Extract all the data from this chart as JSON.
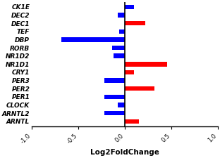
{
  "genes": [
    "CK1E",
    "DEC2",
    "DEC1",
    "TEF",
    "DBP",
    "RORB",
    "NR1D2",
    "NR1D1",
    "CRY1",
    "PER3",
    "PER2",
    "PER1",
    "CLOCK",
    "ARNTL2",
    "ARNTL"
  ],
  "values": [
    0.1,
    -0.08,
    0.22,
    -0.06,
    -0.68,
    -0.14,
    -0.12,
    0.45,
    0.1,
    -0.22,
    0.32,
    -0.22,
    -0.08,
    -0.22,
    0.15
  ],
  "colors": [
    "#0000ff",
    "#0000ff",
    "#ff0000",
    "#0000ff",
    "#0000ff",
    "#0000ff",
    "#0000ff",
    "#ff0000",
    "#ff0000",
    "#0000ff",
    "#ff0000",
    "#0000ff",
    "#0000ff",
    "#0000ff",
    "#ff0000"
  ],
  "xlabel": "Log2FoldChange",
  "xlim": [
    -1.0,
    1.0
  ],
  "xticks": [
    -1.0,
    -0.5,
    0.0,
    0.5,
    1.0
  ],
  "xtick_labels": [
    "-1.0",
    "-0.5",
    "0.0",
    "0.5",
    "1.0"
  ],
  "bar_height": 0.55,
  "figsize": [
    3.12,
    2.25
  ],
  "dpi": 100
}
